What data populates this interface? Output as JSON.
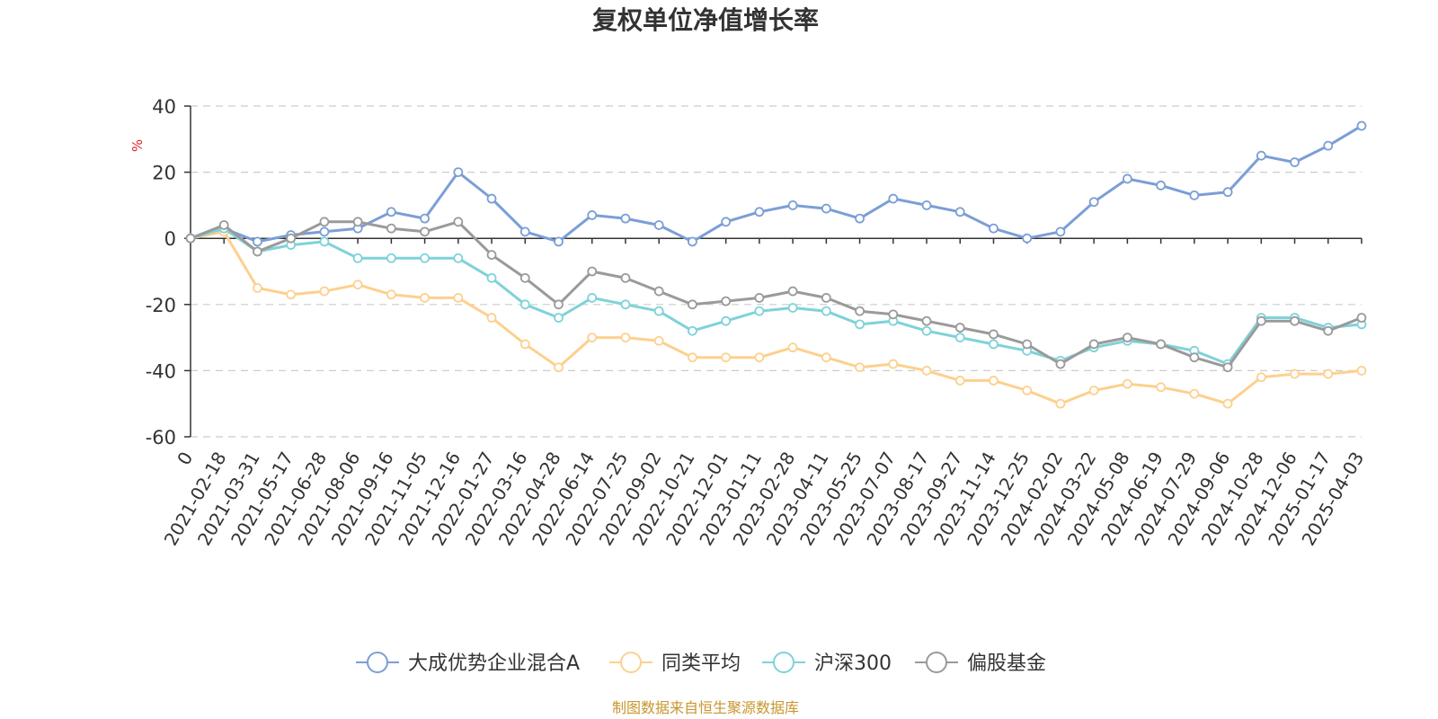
{
  "chart_data": {
    "type": "line",
    "title": "复权单位净值增长率",
    "ylabel": "%",
    "xlabel": "",
    "ylim": [
      -60,
      40
    ],
    "yticks": [
      40,
      20,
      0,
      -20,
      -40,
      -60
    ],
    "categories": [
      "0",
      "2021-02-18",
      "2021-03-31",
      "2021-05-17",
      "2021-06-28",
      "2021-08-06",
      "2021-09-16",
      "2021-11-05",
      "2021-12-16",
      "2022-01-27",
      "2022-03-16",
      "2022-04-28",
      "2022-06-14",
      "2022-07-25",
      "2022-09-02",
      "2022-10-21",
      "2022-12-01",
      "2023-01-11",
      "2023-02-28",
      "2023-04-11",
      "2023-05-25",
      "2023-07-07",
      "2023-08-17",
      "2023-09-27",
      "2023-11-14",
      "2023-12-25",
      "2024-02-02",
      "2024-03-22",
      "2024-05-08",
      "2024-06-19",
      "2024-07-29",
      "2024-09-06",
      "2024-10-28",
      "2024-12-06",
      "2025-01-17",
      "2025-04-03"
    ],
    "series": [
      {
        "name": "大成优势企业混合A",
        "color": "#7b9ed6",
        "values": [
          0,
          3,
          -1,
          1,
          2,
          3,
          8,
          6,
          20,
          12,
          2,
          -1,
          7,
          6,
          4,
          -1,
          5,
          8,
          10,
          9,
          6,
          12,
          10,
          8,
          3,
          0,
          2,
          11,
          18,
          16,
          13,
          14,
          25,
          23,
          28,
          34
        ]
      },
      {
        "name": "同类平均",
        "color": "#fdd08e",
        "values": [
          0,
          2,
          -15,
          -17,
          -16,
          -14,
          -17,
          -18,
          -18,
          -24,
          -32,
          -39,
          -30,
          -30,
          -31,
          -36,
          -36,
          -36,
          -33,
          -36,
          -39,
          -38,
          -40,
          -43,
          -43,
          -46,
          -50,
          -46,
          -44,
          -45,
          -47,
          -50,
          -42,
          -41,
          -41,
          -40
        ]
      },
      {
        "name": "沪深300",
        "color": "#7fd2d9",
        "values": [
          0,
          3,
          -4,
          -2,
          -1,
          -6,
          -6,
          -6,
          -6,
          -12,
          -20,
          -24,
          -18,
          -20,
          -22,
          -28,
          -25,
          -22,
          -21,
          -22,
          -26,
          -25,
          -28,
          -30,
          -32,
          -34,
          -37,
          -33,
          -31,
          -32,
          -34,
          -38,
          -24,
          -24,
          -27,
          -26
        ]
      },
      {
        "name": "偏股基金",
        "color": "#9a9a9a",
        "values": [
          0,
          4,
          -4,
          0,
          5,
          5,
          3,
          2,
          5,
          -5,
          -12,
          -20,
          -10,
          -12,
          -16,
          -20,
          -19,
          -18,
          -16,
          -18,
          -22,
          -23,
          -25,
          -27,
          -29,
          -32,
          -38,
          -32,
          -30,
          -32,
          -36,
          -39,
          -25,
          -25,
          -28,
          -24
        ]
      }
    ],
    "legend_position": "bottom-center",
    "grid": true
  },
  "source_note": "制图数据来自恒生聚源数据库"
}
